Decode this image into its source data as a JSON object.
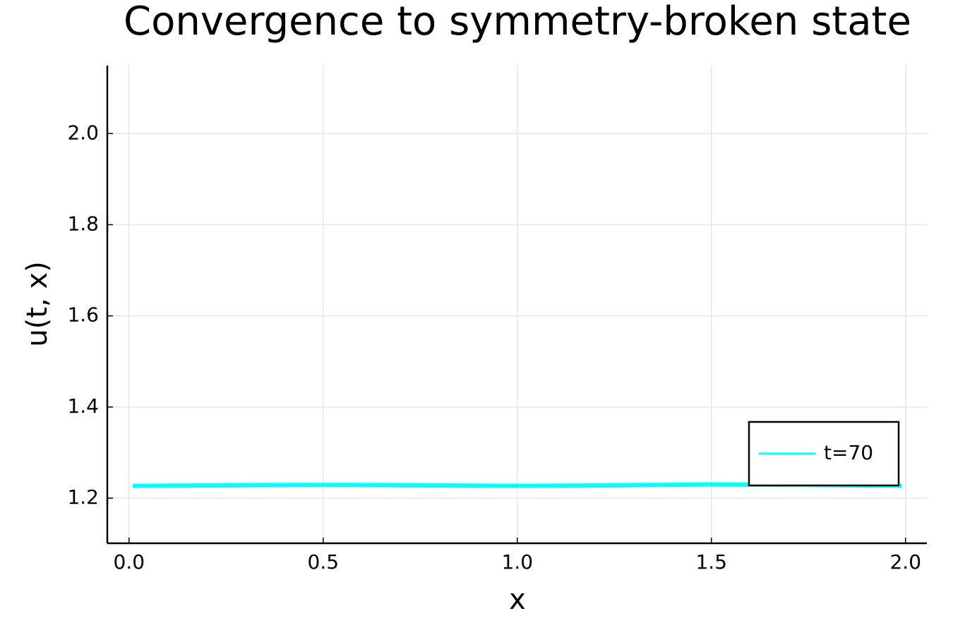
{
  "chart_data": {
    "type": "line",
    "title": "Convergence to symmetry-broken state",
    "xlabel": "x",
    "ylabel": "u(t, x)",
    "x": [
      0.01,
      0.25,
      0.5,
      0.75,
      1.0,
      1.25,
      1.5,
      1.75,
      1.99
    ],
    "series": [
      {
        "name": "t=70",
        "color": "#00ffff",
        "values": [
          1.227,
          1.228,
          1.229,
          1.228,
          1.227,
          1.228,
          1.23,
          1.229,
          1.227
        ]
      }
    ],
    "xlim": [
      -0.056,
      2.055
    ],
    "ylim": [
      1.101,
      2.149
    ],
    "xticks": [
      {
        "value": 0,
        "label": "0.0"
      },
      0.5,
      {
        "value": 1,
        "label": "1.0"
      },
      1.5,
      {
        "value": 2,
        "label": "2.0"
      }
    ],
    "yticks": [
      1.2,
      1.4,
      1.6,
      1.8,
      {
        "value": 2,
        "label": "2.0"
      }
    ],
    "grid": true,
    "legend": "bottom right"
  }
}
